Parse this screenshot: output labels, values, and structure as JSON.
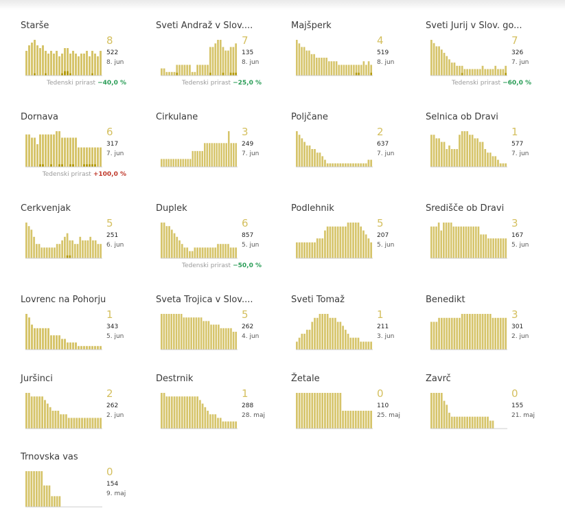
{
  "colors": {
    "bar": "#d6c46a",
    "bar_dark": "#b39a0c",
    "axis": "#cccccc",
    "number": "#d4bf5e",
    "negative": "#2a9d57",
    "positive": "#c0392b"
  },
  "growth_label": "Tedenski prirast",
  "chart_data": [
    {
      "type": "bar",
      "title": "Starše",
      "new_cases": "8",
      "total": "522",
      "date": "8. jun",
      "growth": "−40,0 %",
      "growth_sign": "neg",
      "values": [
        9,
        11,
        12,
        13,
        11,
        10,
        11,
        9,
        8,
        9,
        8,
        9,
        7,
        8,
        10,
        10,
        8,
        9,
        8,
        7,
        8,
        8,
        9,
        7,
        9,
        8,
        7,
        9
      ],
      "highlight": [
        0,
        0,
        0,
        1,
        0,
        0,
        0,
        1,
        0,
        0,
        0,
        0,
        0,
        1,
        2,
        2,
        1,
        0,
        0,
        0,
        0,
        0,
        0,
        0,
        1,
        0,
        0,
        0
      ]
    },
    {
      "type": "bar",
      "title": "Sveti Andraž v Slov....",
      "new_cases": "7",
      "total": "135",
      "date": "8. jun",
      "growth": "−25,0 %",
      "growth_sign": "neg",
      "values": [
        2,
        2,
        1,
        1,
        1,
        1,
        3,
        3,
        3,
        3,
        3,
        3,
        1,
        1,
        3,
        3,
        3,
        3,
        3,
        8,
        8,
        9,
        10,
        10,
        8,
        7,
        7,
        8,
        8,
        9
      ],
      "highlight": [
        0,
        0,
        0,
        0,
        0,
        0,
        1,
        0,
        0,
        0,
        0,
        0,
        0,
        0,
        0,
        0,
        0,
        0,
        0,
        1,
        0,
        0,
        0,
        0,
        1,
        0,
        0,
        1,
        1,
        1
      ]
    },
    {
      "type": "bar",
      "title": "Majšperk",
      "new_cases": "4",
      "total": "519",
      "date": "8. jun",
      "growth": null,
      "values": [
        10,
        9,
        8,
        8,
        7,
        7,
        6,
        6,
        5,
        5,
        5,
        5,
        5,
        4,
        4,
        4,
        4,
        3,
        3,
        3,
        3,
        3,
        3,
        3,
        3,
        3,
        3,
        4,
        3,
        4,
        3
      ],
      "highlight": [
        0,
        0,
        0,
        0,
        0,
        0,
        0,
        0,
        0,
        0,
        0,
        0,
        0,
        0,
        0,
        0,
        0,
        0,
        0,
        0,
        0,
        0,
        0,
        0,
        1,
        1,
        0,
        0,
        0,
        0,
        1
      ]
    },
    {
      "type": "bar",
      "title": "Sveti Jurij v Slov. go...",
      "new_cases": "7",
      "total": "326",
      "date": "7. jun",
      "growth": "−60,0 %",
      "growth_sign": "neg",
      "values": [
        11,
        10,
        9,
        9,
        8,
        7,
        6,
        5,
        4,
        4,
        3,
        3,
        3,
        2,
        2,
        2,
        2,
        2,
        2,
        2,
        3,
        2,
        2,
        2,
        2,
        3,
        2,
        2,
        2,
        3
      ],
      "highlight": [
        0,
        0,
        0,
        0,
        0,
        0,
        0,
        0,
        0,
        0,
        0,
        0,
        1,
        0,
        0,
        0,
        0,
        0,
        0,
        0,
        0,
        0,
        0,
        0,
        0,
        0,
        0,
        0,
        0,
        1
      ]
    },
    {
      "type": "bar",
      "title": "Dornava",
      "new_cases": "6",
      "total": "317",
      "date": "7. jun",
      "growth": "+100,0 %",
      "growth_sign": "pos",
      "values": [
        10,
        10,
        9,
        9,
        7,
        10,
        10,
        10,
        10,
        10,
        10,
        11,
        11,
        9,
        9,
        9,
        9,
        9,
        9,
        6,
        6,
        6,
        6,
        6,
        6,
        6,
        6,
        6
      ],
      "highlight": [
        0,
        0,
        0,
        0,
        0,
        1,
        1,
        0,
        0,
        1,
        0,
        0,
        1,
        1,
        0,
        0,
        1,
        1,
        0,
        0,
        0,
        1,
        1,
        1,
        1,
        1,
        0,
        0
      ]
    },
    {
      "type": "bar",
      "title": "Cirkulane",
      "new_cases": "3",
      "total": "249",
      "date": "7. jun",
      "growth": null,
      "values": [
        2,
        2,
        2,
        2,
        2,
        2,
        2,
        2,
        2,
        2,
        2,
        2,
        2,
        4,
        4,
        4,
        4,
        4,
        6,
        6,
        6,
        6,
        6,
        6,
        6,
        6,
        6,
        6,
        9,
        6,
        6,
        6
      ],
      "highlight": [
        0,
        0,
        0,
        0,
        0,
        0,
        0,
        0,
        0,
        0,
        0,
        0,
        0,
        0,
        0,
        0,
        0,
        0,
        0,
        0,
        0,
        0,
        0,
        0,
        0,
        0,
        0,
        0,
        0,
        0,
        0,
        0
      ]
    },
    {
      "type": "bar",
      "title": "Poljčane",
      "new_cases": "2",
      "total": "637",
      "date": "7. jun",
      "growth": null,
      "values": [
        10,
        9,
        8,
        7,
        6,
        6,
        5,
        5,
        4,
        4,
        3,
        2,
        1,
        1,
        1,
        1,
        1,
        1,
        1,
        1,
        1,
        1,
        1,
        1,
        1,
        1,
        1,
        1,
        2,
        2
      ],
      "highlight": [
        0,
        0,
        0,
        0,
        0,
        0,
        0,
        0,
        0,
        0,
        0,
        0,
        0,
        0,
        0,
        0,
        0,
        0,
        0,
        0,
        0,
        0,
        0,
        0,
        0,
        0,
        0,
        0,
        0,
        0
      ]
    },
    {
      "type": "bar",
      "title": "Selnica ob Dravi",
      "new_cases": "1",
      "total": "577",
      "date": "7. jun",
      "growth": null,
      "values": [
        9,
        9,
        8,
        8,
        7,
        7,
        5,
        6,
        5,
        5,
        5,
        9,
        10,
        10,
        10,
        9,
        9,
        8,
        8,
        7,
        7,
        5,
        4,
        4,
        3,
        3,
        2,
        1,
        1,
        1
      ],
      "highlight": [
        0,
        0,
        0,
        0,
        0,
        0,
        0,
        0,
        0,
        0,
        0,
        0,
        0,
        0,
        0,
        0,
        0,
        0,
        0,
        0,
        0,
        0,
        0,
        0,
        0,
        0,
        0,
        0,
        0,
        0
      ]
    },
    {
      "type": "bar",
      "title": "Cerkvenjak",
      "new_cases": "5",
      "total": "251",
      "date": "6. jun",
      "growth": null,
      "values": [
        10,
        9,
        8,
        6,
        4,
        4,
        3,
        3,
        3,
        3,
        3,
        3,
        4,
        4,
        5,
        6,
        7,
        5,
        5,
        4,
        4,
        6,
        5,
        5,
        5,
        6,
        5,
        5,
        4,
        4
      ],
      "highlight": [
        0,
        0,
        0,
        0,
        0,
        0,
        0,
        0,
        0,
        0,
        0,
        0,
        0,
        0,
        0,
        0,
        1,
        1,
        0,
        0,
        0,
        0,
        0,
        0,
        0,
        0,
        0,
        0,
        0,
        0
      ]
    },
    {
      "type": "bar",
      "title": "Duplek",
      "new_cases": "6",
      "total": "857",
      "date": "5. jun",
      "growth": "−50,0 %",
      "growth_sign": "neg",
      "values": [
        10,
        10,
        9,
        9,
        8,
        7,
        6,
        5,
        4,
        3,
        3,
        2,
        2,
        3,
        3,
        3,
        3,
        3,
        3,
        3,
        3,
        3,
        4,
        4,
        4,
        4,
        4,
        3,
        3,
        3
      ],
      "highlight": [
        0,
        0,
        0,
        0,
        0,
        0,
        0,
        0,
        0,
        0,
        0,
        0,
        0,
        0,
        0,
        0,
        0,
        0,
        0,
        0,
        0,
        0,
        0,
        0,
        0,
        0,
        0,
        0,
        0,
        0
      ]
    },
    {
      "type": "bar",
      "title": "Podlehnik",
      "new_cases": "5",
      "total": "207",
      "date": "5. jun",
      "growth": null,
      "values": [
        4,
        4,
        4,
        4,
        4,
        4,
        4,
        4,
        5,
        5,
        5,
        7,
        8,
        8,
        8,
        8,
        8,
        8,
        8,
        8,
        9,
        9,
        9,
        9,
        9,
        8,
        7,
        6,
        5,
        4
      ],
      "highlight": [
        0,
        0,
        0,
        0,
        0,
        0,
        0,
        0,
        0,
        0,
        0,
        0,
        0,
        0,
        0,
        0,
        0,
        0,
        0,
        0,
        0,
        0,
        0,
        0,
        0,
        0,
        0,
        0,
        0,
        0
      ]
    },
    {
      "type": "bar",
      "title": "Središče ob Dravi",
      "new_cases": "3",
      "total": "167",
      "date": "5. jun",
      "growth": null,
      "values": [
        8,
        8,
        8,
        9,
        7,
        9,
        9,
        9,
        9,
        8,
        8,
        8,
        8,
        8,
        8,
        8,
        8,
        8,
        8,
        8,
        6,
        6,
        6,
        5,
        5,
        5,
        5,
        5,
        5,
        5,
        5
      ],
      "highlight": [
        0,
        0,
        0,
        0,
        0,
        0,
        0,
        0,
        0,
        0,
        0,
        0,
        0,
        0,
        0,
        0,
        0,
        0,
        0,
        0,
        0,
        0,
        0,
        0,
        0,
        0,
        0,
        0,
        0,
        0,
        0
      ]
    },
    {
      "type": "bar",
      "title": "Lovrenc na Pohorju",
      "new_cases": "1",
      "total": "343",
      "date": "5. jun",
      "growth": null,
      "values": [
        10,
        9,
        7,
        6,
        6,
        6,
        6,
        6,
        6,
        4,
        4,
        4,
        4,
        3,
        3,
        2,
        2,
        2,
        2,
        1,
        1,
        1,
        1,
        1,
        1,
        1,
        1,
        1
      ],
      "highlight": [
        0,
        0,
        0,
        0,
        0,
        0,
        0,
        0,
        0,
        0,
        0,
        0,
        0,
        0,
        0,
        0,
        0,
        0,
        0,
        0,
        0,
        0,
        0,
        0,
        0,
        0,
        0,
        0
      ]
    },
    {
      "type": "bar",
      "title": "Sveta Trojica v Slov....",
      "new_cases": "5",
      "total": "262",
      "date": "4. jun",
      "growth": null,
      "values": [
        10,
        10,
        10,
        10,
        10,
        10,
        10,
        10,
        10,
        9,
        9,
        9,
        9,
        9,
        9,
        9,
        9,
        8,
        8,
        8,
        7,
        7,
        7,
        7,
        6,
        6,
        6,
        6,
        6,
        5,
        5
      ],
      "highlight": [
        0,
        0,
        0,
        0,
        0,
        0,
        0,
        0,
        0,
        0,
        0,
        0,
        0,
        0,
        0,
        0,
        0,
        0,
        0,
        0,
        0,
        0,
        0,
        0,
        0,
        0,
        0,
        0,
        0,
        0,
        0
      ]
    },
    {
      "type": "bar",
      "title": "Sveti Tomaž",
      "new_cases": "1",
      "total": "211",
      "date": "3. jun",
      "growth": null,
      "values": [
        2,
        3,
        4,
        4,
        5,
        5,
        7,
        8,
        8,
        9,
        9,
        9,
        9,
        8,
        8,
        8,
        7,
        7,
        6,
        5,
        4,
        3,
        3,
        3,
        3,
        2,
        2,
        2,
        2,
        2
      ],
      "highlight": [
        0,
        0,
        0,
        0,
        0,
        0,
        0,
        0,
        0,
        0,
        0,
        0,
        0,
        0,
        0,
        0,
        0,
        0,
        0,
        0,
        0,
        0,
        0,
        0,
        0,
        0,
        0,
        0,
        0,
        0
      ]
    },
    {
      "type": "bar",
      "title": "Benedikt",
      "new_cases": "3",
      "total": "301",
      "date": "2. jun",
      "growth": null,
      "values": [
        7,
        7,
        7,
        8,
        8,
        8,
        8,
        8,
        8,
        8,
        8,
        8,
        9,
        9,
        9,
        9,
        9,
        9,
        9,
        9,
        9,
        9,
        9,
        9,
        8,
        8,
        8,
        8,
        8,
        8
      ],
      "highlight": [
        0,
        0,
        0,
        0,
        0,
        0,
        0,
        0,
        0,
        0,
        0,
        0,
        0,
        0,
        0,
        0,
        0,
        0,
        0,
        0,
        0,
        0,
        0,
        0,
        0,
        0,
        0,
        0,
        0,
        0
      ]
    },
    {
      "type": "bar",
      "title": "Juršinci",
      "new_cases": "2",
      "total": "262",
      "date": "2. jun",
      "growth": null,
      "values": [
        10,
        10,
        9,
        9,
        9,
        9,
        9,
        8,
        7,
        6,
        5,
        5,
        5,
        4,
        4,
        4,
        3,
        3,
        3,
        3,
        3,
        3,
        3,
        3,
        3,
        3,
        3,
        3,
        3
      ],
      "highlight": [
        0,
        0,
        0,
        0,
        0,
        0,
        0,
        0,
        0,
        0,
        0,
        0,
        0,
        0,
        0,
        0,
        0,
        0,
        0,
        0,
        0,
        0,
        0,
        0,
        0,
        0,
        0,
        0,
        0
      ]
    },
    {
      "type": "bar",
      "title": "Destrnik",
      "new_cases": "1",
      "total": "288",
      "date": "28. maj",
      "growth": null,
      "values": [
        10,
        10,
        9,
        9,
        9,
        9,
        9,
        9,
        9,
        9,
        9,
        9,
        9,
        9,
        9,
        8,
        7,
        6,
        5,
        4,
        4,
        4,
        3,
        3,
        2,
        2,
        2,
        2,
        2,
        2
      ],
      "highlight": [
        0,
        0,
        0,
        0,
        0,
        0,
        0,
        0,
        0,
        0,
        0,
        0,
        0,
        0,
        0,
        0,
        0,
        0,
        0,
        0,
        0,
        0,
        0,
        0,
        0,
        0,
        0,
        0,
        0,
        0
      ]
    },
    {
      "type": "bar",
      "title": "Žetale",
      "new_cases": "0",
      "total": "110",
      "date": "25. maj",
      "growth": null,
      "values": [
        10,
        10,
        10,
        10,
        10,
        10,
        10,
        10,
        10,
        10,
        10,
        10,
        10,
        10,
        10,
        10,
        10,
        10,
        5,
        5,
        5,
        5,
        5,
        5,
        5,
        5,
        5,
        5,
        5,
        5
      ],
      "highlight": [
        0,
        0,
        0,
        0,
        0,
        0,
        0,
        0,
        0,
        0,
        0,
        0,
        0,
        0,
        0,
        0,
        0,
        0,
        0,
        0,
        0,
        0,
        0,
        0,
        0,
        0,
        0,
        0,
        0,
        0
      ]
    },
    {
      "type": "bar",
      "title": "Zavrč",
      "new_cases": "0",
      "total": "155",
      "date": "21. maj",
      "growth": null,
      "values": [
        9,
        9,
        9,
        9,
        9,
        7,
        6,
        4,
        3,
        3,
        3,
        3,
        3,
        3,
        3,
        3,
        3,
        3,
        3,
        3,
        3,
        3,
        3,
        2,
        2,
        0,
        0,
        0,
        0,
        0
      ],
      "highlight": [
        0,
        0,
        0,
        0,
        0,
        0,
        0,
        0,
        0,
        0,
        0,
        0,
        0,
        0,
        0,
        0,
        0,
        0,
        0,
        0,
        0,
        0,
        0,
        0,
        0,
        0,
        0,
        0,
        0,
        0
      ]
    },
    {
      "type": "bar",
      "title": "Trnovska vas",
      "new_cases": "0",
      "total": "154",
      "date": "9. maj",
      "growth": null,
      "values": [
        10,
        10,
        10,
        10,
        10,
        10,
        10,
        6,
        6,
        6,
        3,
        3,
        3,
        3,
        0,
        0,
        0,
        0,
        0,
        0,
        0,
        0,
        0,
        0,
        0,
        0,
        0,
        0,
        0,
        0
      ],
      "highlight": [
        0,
        0,
        0,
        0,
        0,
        0,
        0,
        0,
        0,
        0,
        0,
        0,
        0,
        0,
        0,
        0,
        0,
        0,
        0,
        0,
        0,
        0,
        0,
        0,
        0,
        0,
        0,
        0,
        0,
        0
      ]
    }
  ]
}
